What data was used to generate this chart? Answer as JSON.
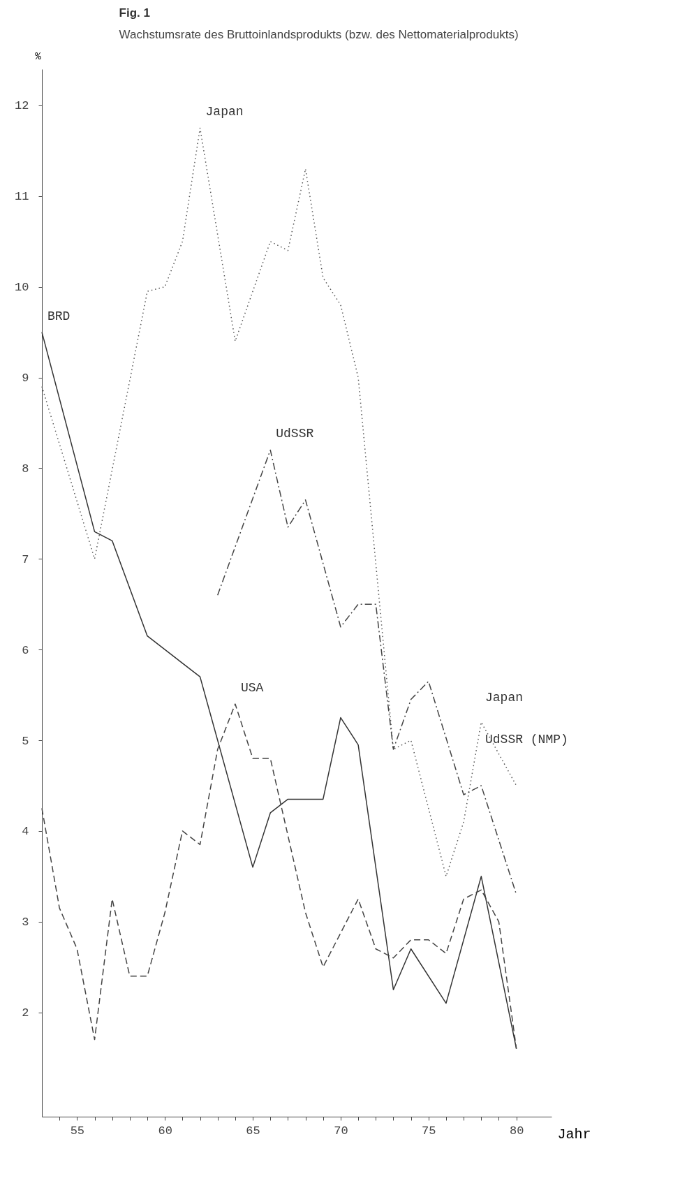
{
  "chart_data": {
    "type": "line",
    "title": "Fig. 1",
    "subtitle": "Wachstumsrate des Bruttoinlandsprodukts (bzw. des Nettomaterialprodukts)",
    "xlabel": "Jahr",
    "ylabel": "%",
    "xlim": [
      53,
      82
    ],
    "ylim": [
      0.85,
      12.4
    ],
    "xticks": [
      {
        "value": 54,
        "label": null
      },
      55,
      {
        "value": 56,
        "label": null
      },
      {
        "value": 57,
        "label": null
      },
      {
        "value": 58,
        "label": null
      },
      {
        "value": 59,
        "label": null
      },
      60,
      {
        "value": 61,
        "label": null
      },
      {
        "value": 62,
        "label": null
      },
      {
        "value": 63,
        "label": null
      },
      {
        "value": 64,
        "label": null
      },
      65,
      {
        "value": 66,
        "label": null
      },
      {
        "value": 67,
        "label": null
      },
      {
        "value": 68,
        "label": null
      },
      {
        "value": 69,
        "label": null
      },
      70,
      {
        "value": 71,
        "label": null
      },
      {
        "value": 72,
        "label": null
      },
      {
        "value": 73,
        "label": null
      },
      {
        "value": 74,
        "label": null
      },
      75,
      {
        "value": 76,
        "label": null
      },
      {
        "value": 77,
        "label": null
      },
      {
        "value": 78,
        "label": null
      },
      {
        "value": 79,
        "label": null
      },
      80
    ],
    "yticks": [
      2,
      3,
      4,
      5,
      6,
      7,
      8,
      9,
      10,
      11,
      12
    ],
    "series": [
      {
        "name": "BRD",
        "color": "#333333",
        "line_style": "solid",
        "x": [
          53,
          56,
          57,
          59,
          62,
          65,
          66,
          67,
          69,
          70,
          71,
          73,
          74,
          76,
          78,
          80
        ],
        "values": [
          9.5,
          7.3,
          7.2,
          6.15,
          5.7,
          3.6,
          4.2,
          4.35,
          4.35,
          5.25,
          4.95,
          2.25,
          2.7,
          2.1,
          3.5,
          1.6
        ]
      },
      {
        "name": "USA",
        "color": "#444444",
        "line_style": "dashed",
        "x": [
          53,
          54,
          55,
          56,
          57,
          58,
          59,
          60,
          61,
          62,
          63,
          64,
          65,
          66,
          68,
          69,
          71,
          72,
          73,
          74,
          75,
          76,
          77,
          78,
          79,
          80
        ],
        "values": [
          4.25,
          3.15,
          2.7,
          1.7,
          3.25,
          2.4,
          2.4,
          3.1,
          4.0,
          3.85,
          4.9,
          5.4,
          4.8,
          4.8,
          3.1,
          2.5,
          3.25,
          2.7,
          2.6,
          2.8,
          2.8,
          2.65,
          3.25,
          3.35,
          3.0,
          1.6
        ]
      },
      {
        "name": "Japan",
        "color": "#555555",
        "line_style": "dotted",
        "x": [
          53,
          56,
          59,
          60,
          61,
          62,
          64,
          66,
          67,
          68,
          69,
          70,
          71,
          73,
          74,
          76,
          77,
          78,
          80
        ],
        "values": [
          8.9,
          7.0,
          9.95,
          10.0,
          10.5,
          11.75,
          9.4,
          10.5,
          10.4,
          11.3,
          10.1,
          9.8,
          9.0,
          4.9,
          5.0,
          3.5,
          4.1,
          5.2,
          4.5
        ]
      },
      {
        "name": "UdSSR",
        "color": "#444444",
        "line_style": "dashdot",
        "x": [
          63,
          66,
          67,
          68,
          70,
          71,
          72,
          73,
          74,
          75,
          77,
          78,
          80
        ],
        "values": [
          6.6,
          8.2,
          7.35,
          7.65,
          6.25,
          6.5,
          6.5,
          4.9,
          5.45,
          5.65,
          4.4,
          4.5,
          3.3
        ]
      }
    ],
    "annotations": [
      "Japan",
      "UdSSR (NMP)"
    ]
  }
}
